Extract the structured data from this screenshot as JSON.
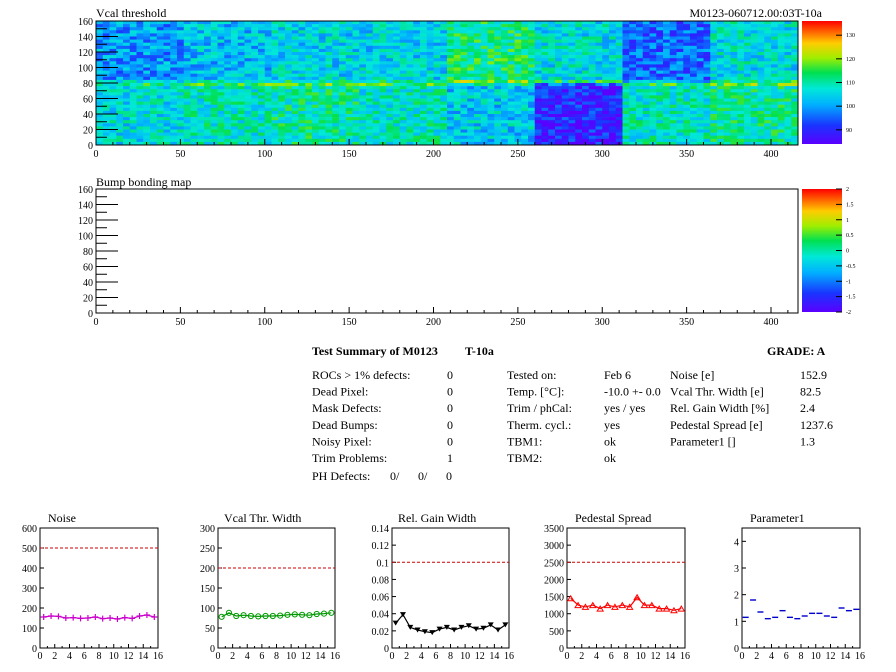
{
  "header": {
    "title": "Vcal threshold",
    "module_id": "M0123-060712.00:03T-10a"
  },
  "bump_title": "Bump bonding map",
  "summary": {
    "title": "Test Summary of M0123",
    "temp_tag": "T-10a",
    "grade_label": "GRADE:  A",
    "left_rows": [
      {
        "label": "ROCs > 1% defects:",
        "value": "0"
      },
      {
        "label": "Dead Pixel:",
        "value": "0"
      },
      {
        "label": "Mask Defects:",
        "value": "0"
      },
      {
        "label": "Dead Bumps:",
        "value": "0"
      },
      {
        "label": "Noisy Pixel:",
        "value": "0"
      },
      {
        "label": "Trim Problems:",
        "value": "1"
      }
    ],
    "ph_defects": {
      "label": "PH Defects:",
      "v1": "0/",
      "v2": "0/",
      "v3": "0",
      "c2": "#ff0000",
      "c3": "#0000ff"
    },
    "mid_rows": [
      {
        "label": "Tested on:",
        "value": "Feb 6"
      },
      {
        "label": "Temp. [°C]:",
        "value": "-10.0 +- 0.0"
      },
      {
        "label": "Trim / phCal:",
        "value": "yes / yes"
      },
      {
        "label": "Therm. cycl.:",
        "value": "yes"
      },
      {
        "label": "TBM1:",
        "value": "ok"
      },
      {
        "label": "TBM2:",
        "value": "ok"
      }
    ],
    "right_rows": [
      {
        "label": "Noise [e]",
        "value": "152.9"
      },
      {
        "label": "Vcal Thr. Width [e]",
        "value": "82.5"
      },
      {
        "label": "Rel. Gain Width [%]",
        "value": "2.4"
      },
      {
        "label": "Pedestal Spread [e]",
        "value": "1237.6"
      },
      {
        "label": "Parameter1 []",
        "value": "1.3"
      }
    ]
  },
  "chart_data": [
    {
      "type": "heatmap",
      "title": "Vcal threshold",
      "xlim": [
        0,
        416
      ],
      "ylim": [
        0,
        160
      ],
      "xticks": [
        0,
        50,
        100,
        150,
        200,
        250,
        300,
        350,
        400
      ],
      "yticks": [
        0,
        20,
        40,
        60,
        80,
        100,
        120,
        140,
        160
      ],
      "colorbar_ticks": [
        "90",
        "100",
        "110",
        "120",
        "130"
      ],
      "roc_means_top": [
        101,
        104,
        106,
        106,
        113,
        107,
        97,
        107
      ],
      "roc_means_bottom": [
        107,
        109,
        111,
        109,
        105,
        91,
        109,
        111
      ],
      "colors": {
        "low": "#4020ff",
        "high": "#ff0000"
      }
    },
    {
      "type": "heatmap",
      "title": "Bump bonding map",
      "xlim": [
        0,
        416
      ],
      "ylim": [
        0,
        160
      ],
      "xticks": [
        0,
        50,
        100,
        150,
        200,
        250,
        300,
        350,
        400
      ],
      "yticks": [
        0,
        20,
        40,
        60,
        80,
        100,
        120,
        140,
        160
      ],
      "colorbar_ticks": [
        "-2",
        "-1.5",
        "-1",
        "-0.5",
        "0",
        "0.5",
        "1",
        "1.5",
        "2"
      ]
    },
    {
      "type": "line",
      "title": "Noise",
      "x": [
        0,
        1,
        2,
        3,
        4,
        5,
        6,
        7,
        8,
        9,
        10,
        11,
        12,
        13,
        14,
        15
      ],
      "values": [
        155,
        160,
        158,
        150,
        152,
        148,
        150,
        155,
        147,
        150,
        145,
        152,
        148,
        160,
        165,
        155
      ],
      "ylim": [
        0,
        600
      ],
      "yticks": [
        "0",
        "100",
        "200",
        "300",
        "400",
        "500",
        "600"
      ],
      "xticks": [
        "0",
        "2",
        "4",
        "6",
        "8",
        "10",
        "12",
        "14",
        "16"
      ],
      "cut": 500,
      "color": "#cc00cc",
      "marker": "cross"
    },
    {
      "type": "line",
      "title": "Vcal Thr. Width",
      "x": [
        0,
        1,
        2,
        3,
        4,
        5,
        6,
        7,
        8,
        9,
        10,
        11,
        12,
        13,
        14,
        15
      ],
      "values": [
        78,
        88,
        80,
        82,
        80,
        79,
        80,
        80,
        81,
        83,
        84,
        83,
        82,
        85,
        86,
        88
      ],
      "ylim": [
        0,
        300
      ],
      "yticks": [
        "0",
        "50",
        "100",
        "150",
        "200",
        "250",
        "300"
      ],
      "xticks": [
        "0",
        "2",
        "4",
        "6",
        "8",
        "10",
        "12",
        "14",
        "16"
      ],
      "cut": 200,
      "color": "#009900",
      "marker": "circle"
    },
    {
      "type": "line",
      "title": "Rel. Gain Width",
      "x": [
        0,
        1,
        2,
        3,
        4,
        5,
        6,
        7,
        8,
        9,
        10,
        11,
        12,
        13,
        14,
        15
      ],
      "values": [
        0.029,
        0.039,
        0.024,
        0.021,
        0.019,
        0.018,
        0.022,
        0.024,
        0.021,
        0.024,
        0.026,
        0.022,
        0.023,
        0.027,
        0.021,
        0.027
      ],
      "ylim": [
        0,
        0.14
      ],
      "yticks": [
        "0",
        "0.02",
        "0.04",
        "0.06",
        "0.08",
        "0.1",
        "0.12",
        "0.14"
      ],
      "xticks": [
        "0",
        "2",
        "4",
        "6",
        "8",
        "10",
        "12",
        "14",
        "16"
      ],
      "cut": 0.1,
      "color": "#000000",
      "marker": "triangle-down"
    },
    {
      "type": "line",
      "title": "Pedestal Spread",
      "x": [
        0,
        1,
        2,
        3,
        4,
        5,
        6,
        7,
        8,
        9,
        10,
        11,
        12,
        13,
        14,
        15
      ],
      "values": [
        1450,
        1250,
        1200,
        1250,
        1150,
        1250,
        1200,
        1250,
        1200,
        1480,
        1250,
        1250,
        1150,
        1150,
        1100,
        1150
      ],
      "ylim": [
        0,
        3500
      ],
      "yticks": [
        "0",
        "500",
        "1000",
        "1500",
        "2000",
        "2500",
        "3000",
        "3500"
      ],
      "xticks": [
        "0",
        "2",
        "4",
        "6",
        "8",
        "10",
        "12",
        "14",
        "16"
      ],
      "cut": 2500,
      "color": "#ff0000",
      "marker": "triangle-up"
    },
    {
      "type": "scatter",
      "title": "Parameter1",
      "x": [
        0,
        1,
        2,
        3,
        4,
        5,
        6,
        7,
        8,
        9,
        10,
        11,
        12,
        13,
        14,
        15
      ],
      "values": [
        1.15,
        1.8,
        1.35,
        1.1,
        1.15,
        1.4,
        1.15,
        1.1,
        1.2,
        1.3,
        1.3,
        1.2,
        1.15,
        1.5,
        1.4,
        1.45
      ],
      "ylim": [
        0,
        4.5
      ],
      "yticks": [
        "0",
        "1",
        "2",
        "3",
        "4"
      ],
      "xticks": [
        "0",
        "2",
        "4",
        "6",
        "8",
        "10",
        "12",
        "14",
        "16"
      ],
      "color": "#0000cc",
      "marker": "hbar"
    }
  ]
}
